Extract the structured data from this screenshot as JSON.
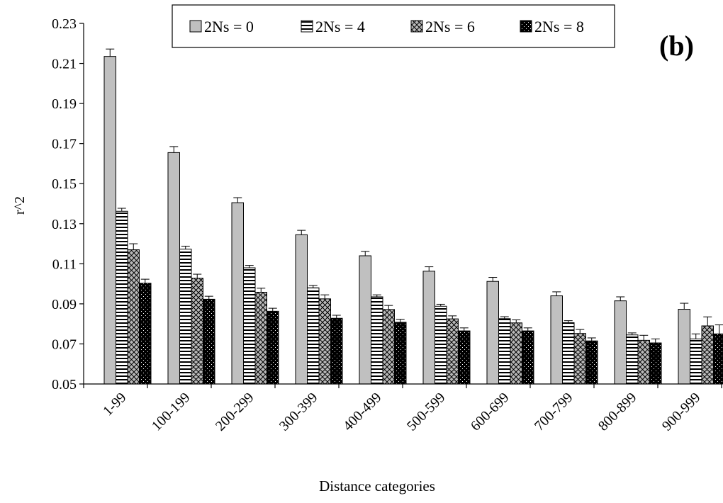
{
  "chart_data": {
    "type": "bar",
    "title": "",
    "panel_label": "(b)",
    "xlabel": "Distance categories",
    "ylabel": "r^2",
    "ylim": [
      0.05,
      0.23
    ],
    "yticks": [
      "0.05",
      "0.07",
      "0.09",
      "0.11",
      "0.13",
      "0.15",
      "0.17",
      "0.19",
      "0.21",
      "0.23"
    ],
    "grid": false,
    "legend_position": "top",
    "categories": [
      "1-99",
      "100-199",
      "200-299",
      "300-399",
      "400-499",
      "500-599",
      "600-699",
      "700-799",
      "800-899",
      "900-999"
    ],
    "series": [
      {
        "name": "2Ns = 0",
        "pattern": "solid-gray",
        "color": "#c0c0c0",
        "values": [
          0.2135,
          0.1655,
          0.1405,
          0.1245,
          0.114,
          0.1063,
          0.1012,
          0.094,
          0.0915,
          0.0873
        ],
        "errors": [
          0.0037,
          0.003,
          0.0025,
          0.0022,
          0.0022,
          0.0022,
          0.002,
          0.002,
          0.002,
          0.003
        ]
      },
      {
        "name": "2Ns = 4",
        "pattern": "horizontal-stripes",
        "color": "#ffffff",
        "values": [
          0.1362,
          0.1173,
          0.108,
          0.098,
          0.0935,
          0.0888,
          0.0826,
          0.0806,
          0.0745,
          0.0725
        ],
        "errors": [
          0.0015,
          0.0015,
          0.0012,
          0.0012,
          0.001,
          0.001,
          0.001,
          0.001,
          0.001,
          0.0025
        ]
      },
      {
        "name": "2Ns = 6",
        "pattern": "crosshatch",
        "color": "#b0b0b0",
        "values": [
          0.117,
          0.1028,
          0.0958,
          0.0925,
          0.0872,
          0.0825,
          0.0805,
          0.0752,
          0.0718,
          0.079
        ],
        "errors": [
          0.003,
          0.002,
          0.002,
          0.002,
          0.002,
          0.0015,
          0.0015,
          0.002,
          0.0025,
          0.0045
        ]
      },
      {
        "name": "2Ns = 8",
        "pattern": "black-dotted",
        "color": "#000000",
        "values": [
          0.1003,
          0.0923,
          0.0863,
          0.0828,
          0.0808,
          0.0765,
          0.0765,
          0.0715,
          0.0705,
          0.075
        ],
        "errors": [
          0.002,
          0.0015,
          0.0015,
          0.0015,
          0.0015,
          0.0015,
          0.0015,
          0.0015,
          0.002,
          0.0045
        ]
      }
    ]
  }
}
